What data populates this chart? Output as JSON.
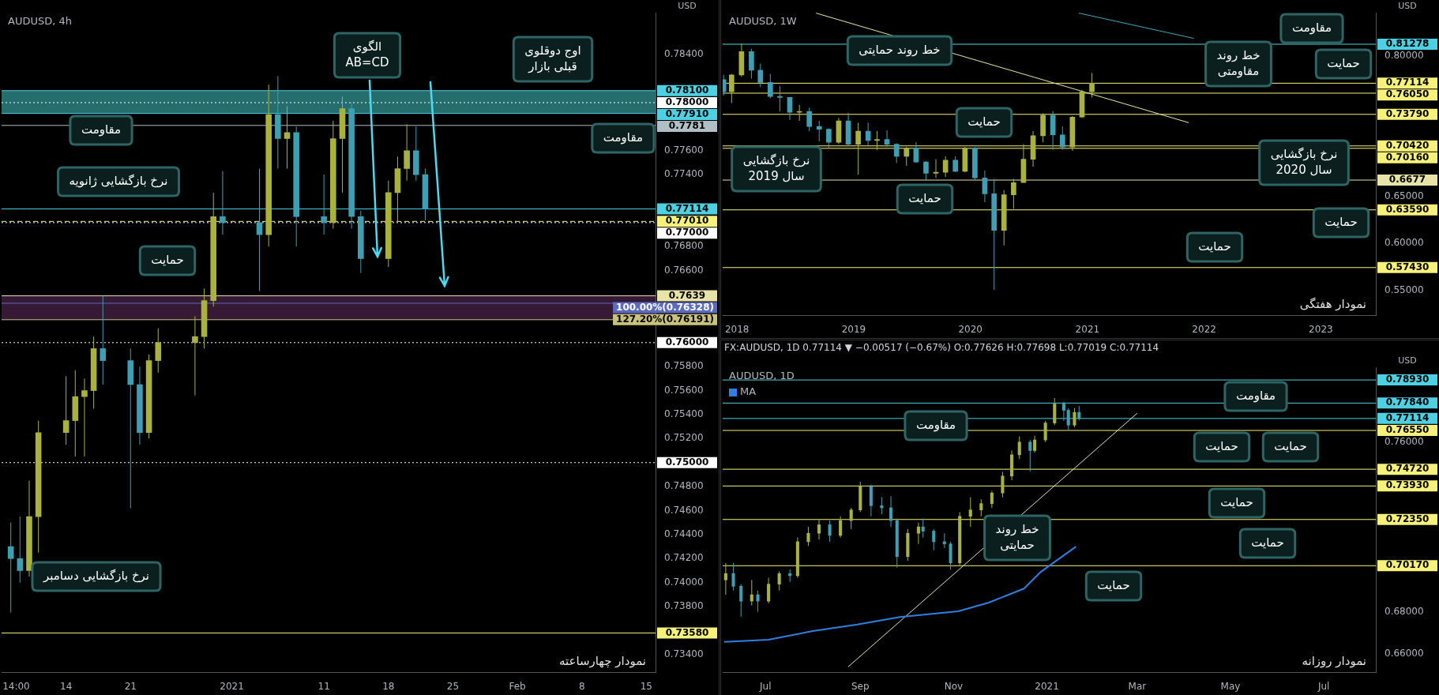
{
  "chart_data": [
    {
      "type": "candlestick",
      "title": "AUDUSD, 4h",
      "ylabel": "USD",
      "x": [
        "2020-12-08",
        "2020-12-09",
        "2020-12-10",
        "2020-12-11",
        "2020-12-14",
        "2020-12-15",
        "2020-12-16",
        "2020-12-17",
        "2020-12-18",
        "2020-12-21",
        "2020-12-22",
        "2020-12-23",
        "2020-12-24",
        "2020-12-28",
        "2020-12-29",
        "2020-12-30",
        "2020-12-31",
        "2021-01-04",
        "2021-01-05",
        "2021-01-06",
        "2021-01-07",
        "2021-01-08",
        "2021-01-11",
        "2021-01-12",
        "2021-01-13",
        "2021-01-14",
        "2021-01-15",
        "2021-01-18",
        "2021-01-19",
        "2021-01-20",
        "2021-01-21",
        "2021-01-22"
      ],
      "ohlc": [
        [
          0.743,
          0.745,
          0.7375,
          0.742
        ],
        [
          0.742,
          0.7455,
          0.74,
          0.741
        ],
        [
          0.741,
          0.7485,
          0.7405,
          0.7455
        ],
        [
          0.7455,
          0.7535,
          0.7425,
          0.7525
        ],
        [
          0.7525,
          0.7572,
          0.7515,
          0.7535
        ],
        [
          0.7535,
          0.7577,
          0.7505,
          0.7555
        ],
        [
          0.7555,
          0.757,
          0.7505,
          0.756
        ],
        [
          0.756,
          0.7605,
          0.7545,
          0.7595
        ],
        [
          0.7595,
          0.7639,
          0.7565,
          0.7585
        ],
        [
          0.7585,
          0.7595,
          0.7462,
          0.7565
        ],
        [
          0.7565,
          0.758,
          0.7515,
          0.7525
        ],
        [
          0.7525,
          0.759,
          0.752,
          0.7585
        ],
        [
          0.7585,
          0.7612,
          0.7575,
          0.76
        ],
        [
          0.76,
          0.7622,
          0.7556,
          0.7605
        ],
        [
          0.7605,
          0.7645,
          0.7595,
          0.7635
        ],
        [
          0.7635,
          0.7725,
          0.763,
          0.7705
        ],
        [
          0.7705,
          0.7743,
          0.769,
          0.77
        ],
        [
          0.77,
          0.7745,
          0.7643,
          0.769
        ],
        [
          0.769,
          0.7815,
          0.768,
          0.779
        ],
        [
          0.779,
          0.7822,
          0.7745,
          0.777
        ],
        [
          0.777,
          0.7797,
          0.7745,
          0.7775
        ],
        [
          0.7775,
          0.778,
          0.768,
          0.7705
        ],
        [
          0.7705,
          0.774,
          0.769,
          0.77
        ],
        [
          0.77,
          0.7785,
          0.7695,
          0.777
        ],
        [
          0.777,
          0.7805,
          0.7725,
          0.7795
        ],
        [
          0.7795,
          0.78,
          0.7695,
          0.7705
        ],
        [
          0.7705,
          0.771,
          0.7658,
          0.767
        ],
        [
          0.767,
          0.7735,
          0.7663,
          0.7725
        ],
        [
          0.7725,
          0.7755,
          0.77,
          0.7745
        ],
        [
          0.7745,
          0.7782,
          0.7735,
          0.776
        ],
        [
          0.776,
          0.778,
          0.7735,
          0.774
        ],
        [
          0.774,
          0.7745,
          0.7702,
          0.77114
        ]
      ],
      "colors": [
        "#3e9fb2",
        "#3e9fb2",
        "#a8b23c",
        "#a8b23c",
        "#a8b23c",
        "#a8b23c",
        "#a8b23c",
        "#a8b23c",
        "#3e9fb2",
        "#3e9fb2",
        "#3e9fb2",
        "#a8b23c",
        "#a8b23c",
        "#a8b23c",
        "#a8b23c",
        "#a8b23c",
        "#3e9fb2",
        "#3e9fb2",
        "#a8b23c",
        "#3e9fb2",
        "#a8b23c",
        "#3e9fb2",
        "#3e9fb2",
        "#a8b23c",
        "#a8b23c",
        "#3e9fb2",
        "#3e9fb2",
        "#a8b23c",
        "#a8b23c",
        "#a8b23c",
        "#3e9fb2",
        "#3e9fb2"
      ],
      "xlim": [
        "2020-12-07",
        "2021-02-16"
      ],
      "xticks": [
        {
          "value": "2020-12-08T14:00",
          "label": "14:00"
        },
        {
          "value": "2020-12-14",
          "label": "14"
        },
        {
          "value": "2020-12-21",
          "label": "21"
        },
        {
          "value": "2021-01-01",
          "label": "2021"
        },
        {
          "value": "2021-01-11",
          "label": "11"
        },
        {
          "value": "2021-01-18",
          "label": "18"
        },
        {
          "value": "2021-01-25",
          "label": "25"
        },
        {
          "value": "2021-02-01",
          "label": "Feb"
        },
        {
          "value": "2021-02-08",
          "label": "8"
        },
        {
          "value": "2021-02-15",
          "label": "15"
        }
      ],
      "ylim": [
        0.7325,
        0.7875
      ],
      "yticks": [
        {
          "value": 0.734,
          "label": "0.73400"
        },
        {
          "value": 0.738,
          "label": "0.73800"
        },
        {
          "value": 0.74,
          "label": "0.74000"
        },
        {
          "value": 0.742,
          "label": "0.74200"
        },
        {
          "value": 0.744,
          "label": "0.74400"
        },
        {
          "value": 0.746,
          "label": "0.74600"
        },
        {
          "value": 0.748,
          "label": "0.74800"
        },
        {
          "value": 0.752,
          "label": "0.75200"
        },
        {
          "value": 0.754,
          "label": "0.75400"
        },
        {
          "value": 0.756,
          "label": "0.75600"
        },
        {
          "value": 0.758,
          "label": "0.75800"
        },
        {
          "value": 0.766,
          "label": "0.76600"
        },
        {
          "value": 0.768,
          "label": "0.76800"
        },
        {
          "value": 0.774,
          "label": "0.77400"
        },
        {
          "value": 0.776,
          "label": "0.77600"
        },
        {
          "value": 0.784,
          "label": "0.78400"
        }
      ],
      "bands": [
        {
          "axis": "y",
          "from": 0.7791,
          "to": 0.781,
          "color": "#3fb6b6"
        },
        {
          "axis": "y",
          "from": 0.76191,
          "to": 0.7639,
          "color": "#5a2c58"
        }
      ],
      "ref_lines": [
        {
          "axis": "y",
          "value": 0.781,
          "label": "0.78100",
          "color": "#4dd0e1"
        },
        {
          "axis": "y",
          "value": 0.78,
          "label": "0.78000",
          "color": "#ffffff",
          "line_style": "dotted"
        },
        {
          "axis": "y",
          "value": 0.7791,
          "label": "0.77910",
          "color": "#4dd0e1"
        },
        {
          "axis": "y",
          "value": 0.7781,
          "label": "0.7781",
          "color": "#b0bec5"
        },
        {
          "axis": "y",
          "value": 0.77114,
          "label": "0.77114",
          "color": "#4dd0e1"
        },
        {
          "axis": "y",
          "value": 0.7701,
          "label": "0.77010",
          "color": "#f5f17a",
          "line_style": "dashed"
        },
        {
          "axis": "y",
          "value": 0.77,
          "label": "0.77000",
          "color": "#ffffff",
          "line_style": "dotted"
        },
        {
          "axis": "y",
          "value": 0.7639,
          "label": "0.7639",
          "color": "#e8e4a8"
        },
        {
          "axis": "y",
          "value": 0.76328,
          "label": "100.00%(0.76328)",
          "color": "#5c6bc0"
        },
        {
          "axis": "y",
          "value": 0.76191,
          "label": "127.20%(0.76191)",
          "color": "#c8c27a"
        },
        {
          "axis": "y",
          "value": 0.76,
          "label": "0.76000",
          "color": "#ffffff",
          "line_style": "dotted"
        },
        {
          "axis": "y",
          "value": 0.75,
          "label": "0.75000",
          "color": "#ffffff",
          "line_style": "dotted"
        },
        {
          "axis": "y",
          "value": 0.7358,
          "label": "0.73580",
          "color": "#f5f17a"
        }
      ],
      "annotations": [
        "مقاومت",
        "نرخ بازگشایی ژانویه",
        "حمایت",
        "الگوی\nAB=CD",
        "اوج دوقلوی\nقبلی بازار",
        "مقاومت",
        "نرخ بازگشایی دسامبر",
        "نمودار چهارساعته"
      ]
    },
    {
      "type": "candlestick",
      "title": "AUDUSD, 1W",
      "ylabel": "USD",
      "x": [
        "2017-11-20",
        "2017-12-15",
        "2018-01-15",
        "2018-02-15",
        "2018-03-15",
        "2018-04-15",
        "2018-05-15",
        "2018-06-15",
        "2018-07-15",
        "2018-08-15",
        "2018-09-15",
        "2018-10-15",
        "2018-11-15",
        "2018-12-15",
        "2019-01-15",
        "2019-02-15",
        "2019-03-15",
        "2019-04-15",
        "2019-05-15",
        "2019-06-15",
        "2019-07-15",
        "2019-08-15",
        "2019-09-15",
        "2019-10-15",
        "2019-11-15",
        "2019-12-15",
        "2020-01-15",
        "2020-02-15",
        "2020-03-15",
        "2020-04-15",
        "2020-05-15",
        "2020-06-15",
        "2020-07-15",
        "2020-08-15",
        "2020-09-15",
        "2020-10-15",
        "2020-11-15",
        "2020-12-15",
        "2021-01-15"
      ],
      "ohlc": [
        [
          0.775,
          0.78,
          0.758,
          0.762
        ],
        [
          0.762,
          0.781,
          0.75,
          0.78
        ],
        [
          0.78,
          0.8136,
          0.778,
          0.805
        ],
        [
          0.805,
          0.808,
          0.776,
          0.785
        ],
        [
          0.785,
          0.792,
          0.767,
          0.772
        ],
        [
          0.772,
          0.781,
          0.755,
          0.757
        ],
        [
          0.757,
          0.768,
          0.741,
          0.756
        ],
        [
          0.756,
          0.756,
          0.732,
          0.74
        ],
        [
          0.74,
          0.748,
          0.731,
          0.741
        ],
        [
          0.741,
          0.745,
          0.72,
          0.725
        ],
        [
          0.725,
          0.731,
          0.709,
          0.722
        ],
        [
          0.722,
          0.723,
          0.702,
          0.708
        ],
        [
          0.708,
          0.734,
          0.706,
          0.731
        ],
        [
          0.731,
          0.7395,
          0.705,
          0.706
        ],
        [
          0.706,
          0.729,
          0.6736,
          0.72
        ],
        [
          0.72,
          0.729,
          0.705,
          0.71
        ],
        [
          0.71,
          0.72,
          0.7,
          0.711
        ],
        [
          0.711,
          0.721,
          0.703,
          0.706
        ],
        [
          0.706,
          0.707,
          0.686,
          0.693
        ],
        [
          0.693,
          0.703,
          0.683,
          0.702
        ],
        [
          0.702,
          0.7082,
          0.686,
          0.687
        ],
        [
          0.687,
          0.688,
          0.6677,
          0.675
        ],
        [
          0.675,
          0.69,
          0.67,
          0.676
        ],
        [
          0.676,
          0.693,
          0.671,
          0.689
        ],
        [
          0.689,
          0.693,
          0.676,
          0.677
        ],
        [
          0.677,
          0.703,
          0.676,
          0.702
        ],
        [
          0.702,
          0.703,
          0.668,
          0.67
        ],
        [
          0.67,
          0.678,
          0.644,
          0.653
        ],
        [
          0.653,
          0.669,
          0.5506,
          0.614
        ],
        [
          0.614,
          0.657,
          0.598,
          0.652
        ],
        [
          0.652,
          0.669,
          0.637,
          0.665
        ],
        [
          0.665,
          0.706,
          0.665,
          0.69
        ],
        [
          0.69,
          0.72,
          0.682,
          0.715
        ],
        [
          0.715,
          0.739,
          0.708,
          0.737
        ],
        [
          0.737,
          0.7414,
          0.7,
          0.716
        ],
        [
          0.716,
          0.725,
          0.7,
          0.703
        ],
        [
          0.703,
          0.736,
          0.699,
          0.735
        ],
        [
          0.735,
          0.764,
          0.734,
          0.762
        ],
        [
          0.762,
          0.782,
          0.756,
          0.77114
        ]
      ],
      "colors": [
        "#3e9fb2",
        "#a8b23c",
        "#a8b23c",
        "#3e9fb2",
        "#3e9fb2",
        "#3e9fb2",
        "#3e9fb2",
        "#3e9fb2",
        "#a8b23c",
        "#3e9fb2",
        "#3e9fb2",
        "#3e9fb2",
        "#a8b23c",
        "#3e9fb2",
        "#a8b23c",
        "#3e9fb2",
        "#a8b23c",
        "#3e9fb2",
        "#3e9fb2",
        "#a8b23c",
        "#3e9fb2",
        "#3e9fb2",
        "#a8b23c",
        "#a8b23c",
        "#3e9fb2",
        "#a8b23c",
        "#3e9fb2",
        "#3e9fb2",
        "#3e9fb2",
        "#a8b23c",
        "#a8b23c",
        "#a8b23c",
        "#a8b23c",
        "#a8b23c",
        "#3e9fb2",
        "#3e9fb2",
        "#a8b23c",
        "#a8b23c",
        "#a8b23c"
      ],
      "series": [
        {
          "type": "line",
          "color": "#e8e6a0",
          "x": [
            "2018-09-05",
            "2021-11-14"
          ],
          "values": [
            0.846,
            0.729
          ]
        },
        {
          "type": "line",
          "color": "#3fa9b8",
          "x": [
            "2020-12-05",
            "2021-11-30"
          ],
          "values": [
            0.846,
            0.819
          ]
        }
      ],
      "xlim": [
        "2017-11-17",
        "2023-06-22"
      ],
      "xticks": [
        {
          "value": "2018",
          "label": "2018"
        },
        {
          "value": "2019",
          "label": "2019"
        },
        {
          "value": "2020",
          "label": "2020"
        },
        {
          "value": "2021",
          "label": "2021"
        },
        {
          "value": "2022",
          "label": "2022"
        },
        {
          "value": "2023",
          "label": "2023"
        }
      ],
      "ylim": [
        0.523,
        0.8465
      ],
      "yticks": [
        {
          "value": 0.55,
          "label": "0.55000"
        },
        {
          "value": 0.6,
          "label": "0.60000"
        },
        {
          "value": 0.65,
          "label": "0.65000"
        },
        {
          "value": 0.8,
          "label": "0.80000"
        }
      ],
      "ref_lines": [
        {
          "axis": "y",
          "value": 0.81278,
          "label": "0.81278",
          "color": "#4dd0e1"
        },
        {
          "axis": "y",
          "value": 0.77114,
          "label": "0.77114",
          "color": "#f5f17a"
        },
        {
          "axis": "y",
          "value": 0.7605,
          "label": "0.76050",
          "color": "#f5f17a"
        },
        {
          "axis": "y",
          "value": 0.7379,
          "label": "0.73790",
          "color": "#f5f17a"
        },
        {
          "axis": "y",
          "value": 0.7042,
          "label": "0.70420",
          "color": "#f5f17a"
        },
        {
          "axis": "y",
          "value": 0.7016,
          "label": "0.70160",
          "color": "#f5f17a"
        },
        {
          "axis": "y",
          "value": 0.6677,
          "label": "0.6677",
          "color": "#e8e4a8"
        },
        {
          "axis": "y",
          "value": 0.6359,
          "label": "0.63590",
          "color": "#f5f17a"
        },
        {
          "axis": "y",
          "value": 0.5743,
          "label": "0.57430",
          "color": "#f5f17a"
        }
      ],
      "annotations": [
        "مقاومت",
        "خط روند\nمقاومتی",
        "حمایت",
        "خط روند حمایتی",
        "حمایت",
        "نرخ بازگشایی\nسال 2019",
        "حمایت",
        "نرخ بازگشایی\nسال 2020",
        "حمایت",
        "حمایت",
        "نمودار هفتگی"
      ]
    },
    {
      "type": "candlestick",
      "title": "AUDUSD, 1D",
      "subtitle": "FX:AUDUSD, 1D 0.77114 ▼ −0.00517 (−0.67%) O:0.77626 H:0.77698 L:0.77019 C:0.77114",
      "ylabel": "USD",
      "legend": "top left",
      "x": [
        "2020-06-05",
        "2020-06-10",
        "2020-06-15",
        "2020-06-22",
        "2020-06-26",
        "2020-07-03",
        "2020-07-10",
        "2020-07-17",
        "2020-07-22",
        "2020-07-29",
        "2020-08-05",
        "2020-08-12",
        "2020-08-19",
        "2020-08-26",
        "2020-09-01",
        "2020-09-08",
        "2020-09-15",
        "2020-09-21",
        "2020-09-25",
        "2020-10-02",
        "2020-10-09",
        "2020-10-12",
        "2020-10-19",
        "2020-10-26",
        "2020-10-30",
        "2020-11-05",
        "2020-11-12",
        "2020-11-19",
        "2020-11-26",
        "2020-12-03",
        "2020-12-09",
        "2020-12-14",
        "2020-12-21",
        "2020-12-24",
        "2020-12-31",
        "2021-01-06",
        "2021-01-12",
        "2021-01-15",
        "2021-01-19",
        "2021-01-22"
      ],
      "ohlc": [
        [
          0.695,
          0.703,
          0.688,
          0.698
        ],
        [
          0.698,
          0.703,
          0.69,
          0.692
        ],
        [
          0.692,
          0.693,
          0.6777,
          0.685
        ],
        [
          0.685,
          0.695,
          0.683,
          0.688
        ],
        [
          0.688,
          0.69,
          0.68,
          0.685
        ],
        [
          0.685,
          0.696,
          0.684,
          0.693
        ],
        [
          0.693,
          0.699,
          0.69,
          0.698
        ],
        [
          0.698,
          0.7,
          0.694,
          0.697
        ],
        [
          0.697,
          0.715,
          0.696,
          0.713
        ],
        [
          0.713,
          0.72,
          0.711,
          0.717
        ],
        [
          0.717,
          0.7235,
          0.714,
          0.721
        ],
        [
          0.721,
          0.723,
          0.713,
          0.716
        ],
        [
          0.716,
          0.725,
          0.715,
          0.723
        ],
        [
          0.723,
          0.729,
          0.719,
          0.728
        ],
        [
          0.728,
          0.7413,
          0.727,
          0.739
        ],
        [
          0.739,
          0.74,
          0.725,
          0.73
        ],
        [
          0.73,
          0.734,
          0.726,
          0.729
        ],
        [
          0.729,
          0.7345,
          0.72,
          0.723
        ],
        [
          0.723,
          0.724,
          0.7008,
          0.706
        ],
        [
          0.706,
          0.719,
          0.704,
          0.717
        ],
        [
          0.717,
          0.722,
          0.712,
          0.72
        ],
        [
          0.72,
          0.724,
          0.715,
          0.718
        ],
        [
          0.718,
          0.719,
          0.709,
          0.713
        ],
        [
          0.713,
          0.717,
          0.71,
          0.712
        ],
        [
          0.712,
          0.713,
          0.6998,
          0.703
        ],
        [
          0.703,
          0.727,
          0.702,
          0.725
        ],
        [
          0.725,
          0.734,
          0.72,
          0.728
        ],
        [
          0.728,
          0.733,
          0.725,
          0.731
        ],
        [
          0.731,
          0.737,
          0.729,
          0.736
        ],
        [
          0.736,
          0.746,
          0.734,
          0.744
        ],
        [
          0.744,
          0.756,
          0.742,
          0.754
        ],
        [
          0.754,
          0.7627,
          0.752,
          0.76
        ],
        [
          0.76,
          0.761,
          0.7462,
          0.756
        ],
        [
          0.756,
          0.763,
          0.755,
          0.761
        ],
        [
          0.761,
          0.77,
          0.76,
          0.769
        ],
        [
          0.769,
          0.7808,
          0.768,
          0.778
        ],
        [
          0.778,
          0.779,
          0.77,
          0.775
        ],
        [
          0.775,
          0.776,
          0.7658,
          0.768
        ],
        [
          0.768,
          0.776,
          0.767,
          0.774
        ],
        [
          0.774,
          0.777,
          0.7702,
          0.77114
        ]
      ],
      "colors": [
        "#a8b23c",
        "#3e9fb2",
        "#3e9fb2",
        "#a8b23c",
        "#3e9fb2",
        "#a8b23c",
        "#a8b23c",
        "#3e9fb2",
        "#a8b23c",
        "#a8b23c",
        "#a8b23c",
        "#3e9fb2",
        "#a8b23c",
        "#a8b23c",
        "#a8b23c",
        "#3e9fb2",
        "#3e9fb2",
        "#3e9fb2",
        "#3e9fb2",
        "#a8b23c",
        "#a8b23c",
        "#3e9fb2",
        "#3e9fb2",
        "#3e9fb2",
        "#3e9fb2",
        "#a8b23c",
        "#a8b23c",
        "#a8b23c",
        "#a8b23c",
        "#a8b23c",
        "#a8b23c",
        "#a8b23c",
        "#3e9fb2",
        "#a8b23c",
        "#a8b23c",
        "#a8b23c",
        "#3e9fb2",
        "#3e9fb2",
        "#a8b23c",
        "#3e9fb2"
      ],
      "series": [
        {
          "type": "line",
          "name": "MA",
          "color": "#2f7fe0",
          "x": [
            "2020-06-04",
            "2020-07-03",
            "2020-08-01",
            "2020-08-30",
            "2020-09-27",
            "2020-11-04",
            "2020-11-24",
            "2020-12-17",
            "2020-12-28",
            "2021-01-09",
            "2021-01-20"
          ],
          "values": [
            0.6658,
            0.6668,
            0.6709,
            0.674,
            0.6775,
            0.6802,
            0.6843,
            0.6909,
            0.6988,
            0.705,
            0.7107
          ]
        },
        {
          "type": "line",
          "color": "#e8e6a0",
          "x": [
            "2020-08-24",
            "2021-03-01"
          ],
          "values": [
            0.654,
            0.7736
          ]
        }
      ],
      "xlim": [
        "2020-06-03",
        "2021-08-04"
      ],
      "xticks": [
        {
          "value": "2020-07-01",
          "label": "Jul"
        },
        {
          "value": "2020-09-01",
          "label": "Sep"
        },
        {
          "value": "2020-11-01",
          "label": "Nov"
        },
        {
          "value": "2021-01-01",
          "label": "2021"
        },
        {
          "value": "2021-03-01",
          "label": "Mar"
        },
        {
          "value": "2021-05-01",
          "label": "May"
        },
        {
          "value": "2021-07-01",
          "label": "Jul"
        }
      ],
      "ylim": [
        0.6513,
        0.7953
      ],
      "yticks": [
        {
          "value": 0.66,
          "label": "0.66000"
        },
        {
          "value": 0.68,
          "label": "0.68000"
        },
        {
          "value": 0.76,
          "label": "0.76000"
        }
      ],
      "ref_lines": [
        {
          "axis": "y",
          "value": 0.7893,
          "label": "0.78930",
          "color": "#4dd0e1"
        },
        {
          "axis": "y",
          "value": 0.7784,
          "label": "0.77840",
          "color": "#4dd0e1"
        },
        {
          "axis": "y",
          "value": 0.77114,
          "label": "0.77114",
          "color": "#4dd0e1"
        },
        {
          "axis": "y",
          "value": 0.7655,
          "label": "0.76550",
          "color": "#f5f17a"
        },
        {
          "axis": "y",
          "value": 0.7472,
          "label": "0.74720",
          "color": "#f5f17a"
        },
        {
          "axis": "y",
          "value": 0.7393,
          "label": "0.73930",
          "color": "#f5f17a"
        },
        {
          "axis": "y",
          "value": 0.7235,
          "label": "0.72350",
          "color": "#f5f17a"
        },
        {
          "axis": "y",
          "value": 0.7017,
          "label": "0.70170",
          "color": "#f5f17a"
        }
      ],
      "annotations": [
        "مقاومت",
        "مقاومت",
        "حمایت",
        "حمایت",
        "حمایت",
        "حمایت",
        "خط روند\nحمایتی",
        "حمایت",
        "نمودار روزانه"
      ]
    }
  ]
}
